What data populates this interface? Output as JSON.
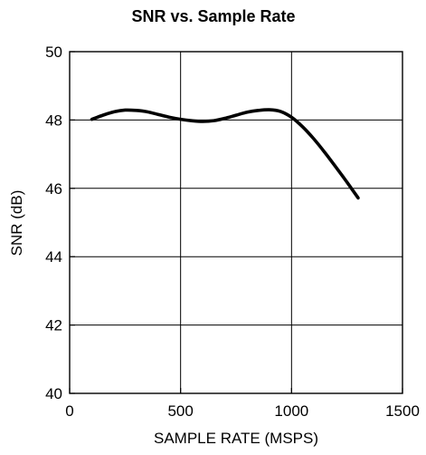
{
  "chart_data": {
    "type": "line",
    "title": "SNR vs. Sample Rate",
    "xlabel": "SAMPLE RATE (MSPS)",
    "ylabel": "SNR (dB)",
    "xlim": [
      0,
      1500
    ],
    "ylim": [
      40,
      50
    ],
    "xticks": [
      0,
      500,
      1000,
      1500
    ],
    "yticks": [
      40,
      42,
      44,
      46,
      48,
      50
    ],
    "grid": true,
    "series": [
      {
        "x": [
          100,
          150,
          200,
          250,
          300,
          350,
          400,
          450,
          500,
          550,
          600,
          650,
          700,
          750,
          800,
          850,
          900,
          950,
          1000,
          1050,
          1100,
          1150,
          1200,
          1250,
          1300
        ],
        "y": [
          48.02,
          48.14,
          48.24,
          48.29,
          48.28,
          48.24,
          48.16,
          48.08,
          48.02,
          47.98,
          47.96,
          47.98,
          48.05,
          48.14,
          48.23,
          48.28,
          48.3,
          48.25,
          48.08,
          47.8,
          47.45,
          47.05,
          46.62,
          46.18,
          45.72
        ]
      }
    ]
  }
}
